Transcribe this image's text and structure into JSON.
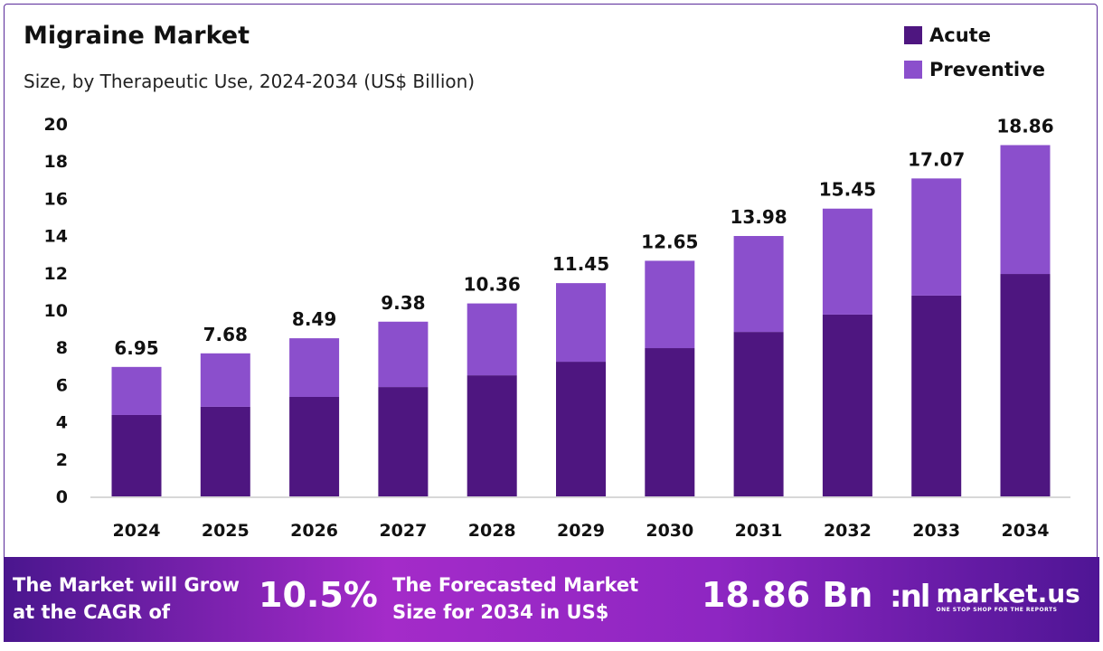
{
  "chart_data": {
    "type": "stacked-bar",
    "title": "Migraine Market",
    "subtitle": "Size, by Therapeutic Use, 2024-2034 (US$ Billion)",
    "categories": [
      "2024",
      "2025",
      "2026",
      "2027",
      "2028",
      "2029",
      "2030",
      "2031",
      "2032",
      "2033",
      "2034"
    ],
    "series": [
      {
        "name": "Acute",
        "color": "#4e1680",
        "values": [
          4.37,
          4.81,
          5.34,
          5.87,
          6.5,
          7.23,
          7.96,
          8.83,
          9.76,
          10.78,
          11.94
        ]
      },
      {
        "name": "Preventive",
        "color": "#8b4fcc",
        "values": [
          2.58,
          2.87,
          3.15,
          3.51,
          3.86,
          4.22,
          4.69,
          5.15,
          5.69,
          6.29,
          6.92
        ]
      }
    ],
    "totals": [
      "6.95",
      "7.68",
      "8.49",
      "9.38",
      "10.36",
      "11.45",
      "12.65",
      "13.98",
      "15.45",
      "17.07",
      "18.86"
    ],
    "yticks": [
      "0",
      "2",
      "4",
      "6",
      "8",
      "10",
      "12",
      "14",
      "16",
      "18",
      "20"
    ],
    "ylim": [
      0,
      20
    ],
    "grid": false,
    "legend_position": "top-right"
  },
  "footer": {
    "cagr_text_1": "The Market will Grow",
    "cagr_text_2": "at the CAGR of",
    "cagr_value": "10.5%",
    "forecast_text_1": "The Forecasted Market",
    "forecast_text_2": "Size for 2034 in US$",
    "forecast_value": "18.86 Bn",
    "logo_name": "market.us",
    "logo_tagline": "ONE STOP SHOP FOR THE REPORTS"
  }
}
